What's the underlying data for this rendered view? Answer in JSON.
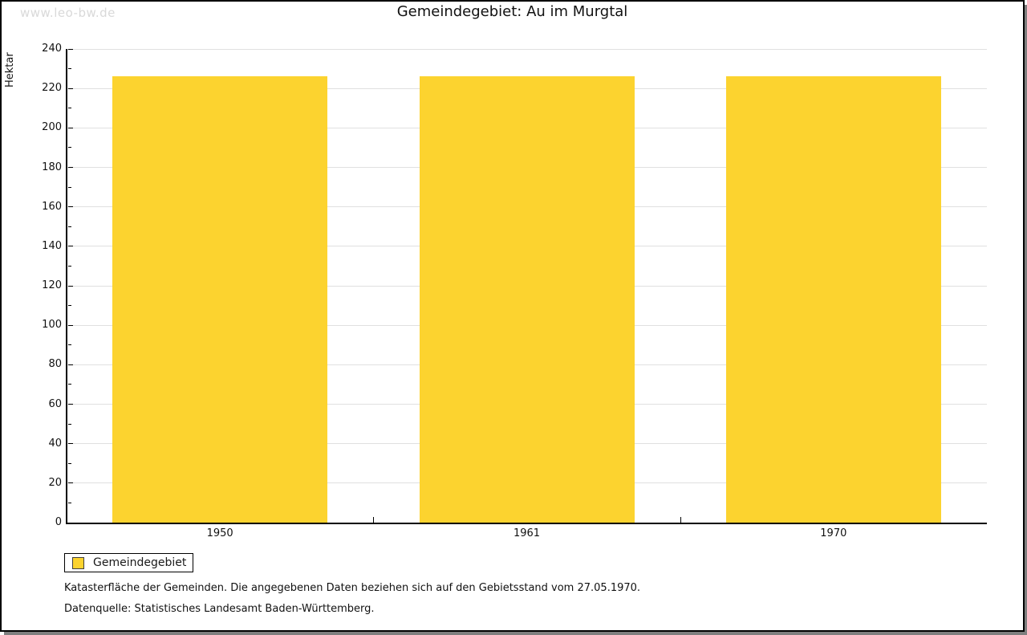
{
  "watermark": "www.leo-bw.de",
  "title": "Gemeindegebiet: Au im Murgtal",
  "chart_data": {
    "type": "bar",
    "title": "Gemeindegebiet: Au im Murgtal",
    "categories": [
      "1950",
      "1961",
      "1970"
    ],
    "series": [
      {
        "name": "Gemeindegebiet",
        "values": [
          226,
          226,
          226
        ]
      }
    ],
    "xlabel": "",
    "ylabel": "Hektar",
    "ylim": [
      0,
      240
    ],
    "ytick_step": 20,
    "yminor_step": 10,
    "grid": true,
    "legend_position": "bottom-left",
    "bar_color": "#fcd32f",
    "bar_border_color": "#fcd32f"
  },
  "legend": {
    "items": [
      {
        "label": "Gemeindegebiet",
        "color": "#fcd32f"
      }
    ]
  },
  "footer": {
    "line1": "Katasterfläche der Gemeinden. Die angegebenen Daten beziehen sich auf den Gebietsstand vom 27.05.1970.",
    "line2": "Datenquelle: Statistisches Landesamt Baden-Württemberg."
  },
  "colors": {
    "bar": "#fcd32f",
    "grid": "#e0e0e0",
    "axis": "#000000",
    "watermark": "#d9d9d9",
    "shadow": "#7f7f7f",
    "text": "#111111"
  }
}
